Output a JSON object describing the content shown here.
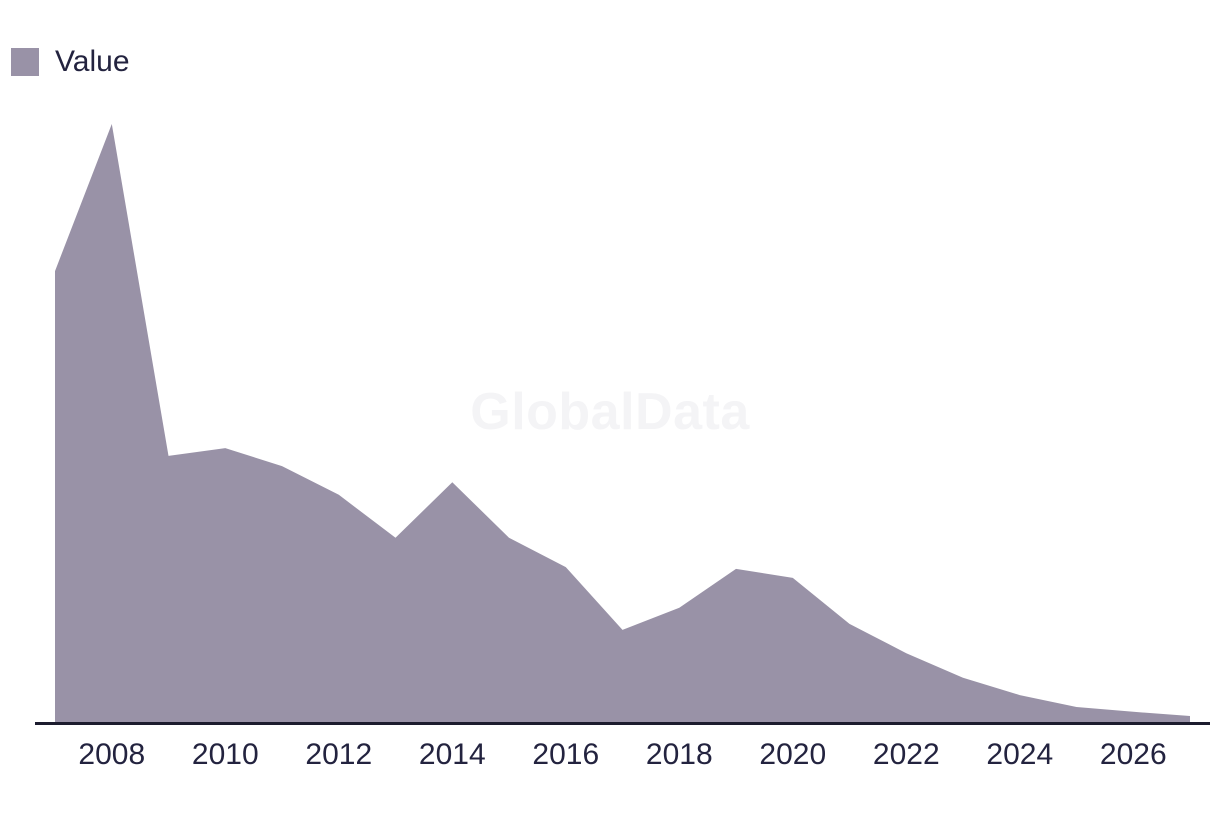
{
  "legend": {
    "label": "Value",
    "position": "top-left"
  },
  "watermark": {
    "text": "GlobalData"
  },
  "colors": {
    "fill": "#9992a7",
    "axis": "#1c1c2e",
    "text": "#23233f",
    "watermark": "#f4f4f6",
    "background": "#ffffff"
  },
  "chart_data": {
    "type": "area",
    "title": "",
    "xlabel": "",
    "ylabel": "",
    "series": [
      {
        "name": "Value",
        "color": "#9992a7",
        "values": [
          75.4,
          100,
          44.5,
          45.8,
          42.8,
          38.0,
          30.8,
          40.1,
          30.8,
          25.9,
          15.4,
          19.1,
          25.6,
          24.1,
          16.4,
          11.5,
          7.4,
          4.5,
          2.5,
          1.7,
          1.0
        ]
      }
    ],
    "x": [
      2007,
      2008,
      2009,
      2010,
      2011,
      2012,
      2013,
      2014,
      2015,
      2016,
      2017,
      2018,
      2019,
      2020,
      2021,
      2022,
      2023,
      2024,
      2025,
      2026,
      2027
    ],
    "x_tick_labels": [
      "2008",
      "2010",
      "2012",
      "2014",
      "2016",
      "2018",
      "2020",
      "2022",
      "2024",
      "2026"
    ],
    "ylim": [
      0,
      100
    ],
    "value_scale_note": "y-axis unlabeled; values estimated as percent of 2008 peak",
    "y_axis_visible": false,
    "grid": false,
    "legend_position": "top-left"
  }
}
